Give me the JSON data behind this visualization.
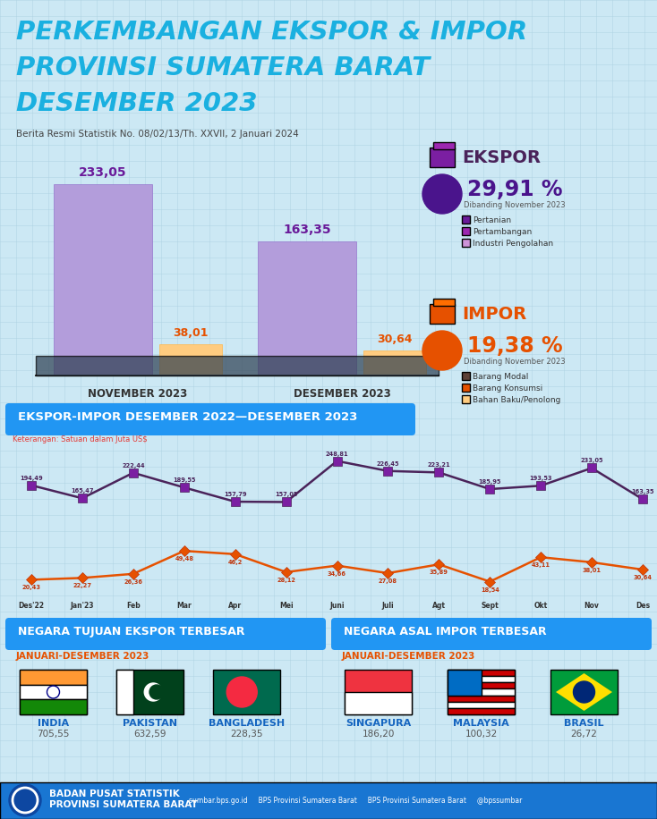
{
  "title_line1": "PERKEMBANGAN EKSPOR & IMPOR",
  "title_line2": "PROVINSI SUMATERA BARAT",
  "title_line3": "DESEMBER 2023",
  "subtitle": "Berita Resmi Statistik No. 08/02/13/Th. XXVII, 2 Januari 2024",
  "bg_color": "#cce8f4",
  "grid_color": "#aacfe0",
  "title_color": "#1ab0e0",
  "bar_nov_ekspor": 233.05,
  "bar_nov_impor": 38.01,
  "bar_des_ekspor": 163.35,
  "bar_des_impor": 30.64,
  "ekspor_color": "#b39ddb",
  "impor_color": "#ffb74d",
  "ekspor_pct": "29,91 %",
  "impor_pct": "19,38 %",
  "ekspor_legend": [
    "Pertanian",
    "Pertambangan",
    "Industri Pengolahan"
  ],
  "ekspor_legend_colors": [
    "#6a1b9a",
    "#9c27b0",
    "#ce93d8"
  ],
  "impor_legend": [
    "Barang Modal",
    "Barang Konsumsi",
    "Bahan Baku/Penolong"
  ],
  "impor_legend_colors": [
    "#5d4037",
    "#e65100",
    "#ffcc80"
  ],
  "line_months": [
    "Des'22",
    "Jan'23",
    "Feb",
    "Mar",
    "Apr",
    "Mei",
    "Juni",
    "Juli",
    "Agt",
    "Sept",
    "Okt",
    "Nov",
    "Des"
  ],
  "ekspor_values": [
    194.49,
    165.47,
    222.44,
    189.55,
    157.79,
    157.05,
    248.81,
    226.45,
    223.21,
    185.95,
    193.53,
    233.05,
    163.35
  ],
  "impor_values": [
    20.43,
    22.27,
    26.36,
    49.48,
    46.2,
    28.12,
    34.66,
    27.08,
    35.89,
    18.54,
    43.11,
    38.01,
    30.64
  ],
  "section2_title": "EKSPOR-IMPOR DESEMBER 2022—DESEMBER 2023",
  "section2_note": "Keterangan: Satuan dalam Juta US$",
  "section3a_title": "NEGARA TUJUAN EKSPOR TERBESAR",
  "section3b_title": "NEGARA ASAL IMPOR TERBESAR",
  "period_label": "JANUARI-DESEMBER 2023",
  "export_countries": [
    "INDIA",
    "PAKISTAN",
    "BANGLADESH"
  ],
  "export_values_country": [
    "705,55",
    "632,59",
    "228,35"
  ],
  "import_countries": [
    "SINGAPURA",
    "MALAYSIA",
    "BRASIL"
  ],
  "import_values_country": [
    "186,20",
    "100,32",
    "26,72"
  ],
  "india_colors": [
    "#ff9933",
    "#ffffff",
    "#138808"
  ],
  "pakistan_colors": [
    "#01411c",
    "#ffffff"
  ],
  "bangladesh_colors": [
    "#006a4e",
    "#f42a41"
  ],
  "singapura_colors": [
    "#ef3340",
    "#ffffff"
  ],
  "malaysia_colors": [
    "#cc0001",
    "#ffffff",
    "#006cc4"
  ],
  "brasil_colors": [
    "#009c3b",
    "#ffdf00",
    "#002776"
  ],
  "footer_text1": "BADAN PUSAT STATISTIK",
  "footer_text2": "PROVINSI SUMATERA BARAT",
  "footer_links": "sumbar.bps.go.id     BPS Provinsi Sumatera Barat     BPS Provinsi Sumatera Barat     @bpssumbar"
}
